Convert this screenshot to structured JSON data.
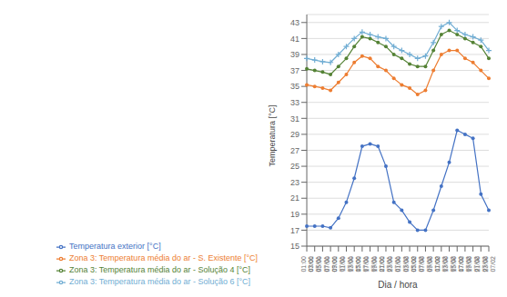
{
  "chart_data": {
    "type": "line",
    "xlabel": "Dia / hora",
    "ylabel": "Temperatura [°C]",
    "categories": [
      "01:00\n07/01",
      "03:00\n07/01",
      "05:00\n07/01",
      "07:00\n07/01",
      "09:00\n07/01",
      "11:00\n07/01",
      "13:00\n07/01",
      "15:00\n07/01",
      "17:00\n07/01",
      "19:00\n07/01",
      "21:00\n07/01",
      "23:00\n07/01",
      "01:00\n07/02",
      "03:00\n07/02",
      "05:00\n07/02",
      "07:00\n07/02",
      "09:00\n07/02",
      "11:00\n07/02",
      "13:00\n07/02",
      "15:00\n07/02",
      "17:00\n07/02",
      "19:00\n07/02",
      "21:00\n07/02",
      "23:00\n07/02"
    ],
    "series": [
      {
        "name": "Temperatura exterior [°C]",
        "color": "#4472C4",
        "marker": "o",
        "values": [
          17.5,
          17.5,
          17.5,
          17.3,
          18.5,
          20.5,
          23.5,
          27.5,
          27.8,
          27.5,
          25.0,
          20.5,
          19.5,
          18.0,
          17.0,
          17.0,
          19.5,
          22.5,
          25.5,
          29.5,
          29.0,
          28.5,
          21.5,
          19.5
        ]
      },
      {
        "name": "Zona 3: Temperatura média do ar - S. Existente [°C]",
        "color": "#ED7D31",
        "marker": "o",
        "values": [
          35.2,
          35.0,
          34.8,
          34.5,
          35.5,
          36.5,
          38.0,
          38.8,
          38.5,
          37.5,
          37.0,
          36.0,
          35.2,
          34.8,
          34.0,
          34.5,
          37.0,
          39.0,
          39.5,
          39.5,
          38.5,
          38.0,
          37.0,
          36.0
        ]
      },
      {
        "name": "Zona 3: Temperatura média do ar - Solução 4 [°C]",
        "color": "#548235",
        "marker": "o",
        "values": [
          37.2,
          37.0,
          36.8,
          36.5,
          37.5,
          38.5,
          40.0,
          41.2,
          41.0,
          40.5,
          40.0,
          39.0,
          38.5,
          37.8,
          37.5,
          37.5,
          39.5,
          41.5,
          42.0,
          41.5,
          41.0,
          40.5,
          40.0,
          38.5
        ]
      },
      {
        "name": "Zona 3: Temperatura média do ar - Solução 6 [°C]",
        "color": "#70ADD3",
        "marker": "+",
        "values": [
          38.5,
          38.3,
          38.1,
          38.0,
          39.0,
          40.0,
          41.0,
          41.8,
          41.5,
          41.2,
          41.0,
          40.0,
          39.5,
          39.0,
          38.5,
          38.8,
          40.5,
          42.5,
          43.0,
          42.0,
          41.5,
          41.2,
          40.8,
          39.5
        ]
      }
    ],
    "ylim": [
      15,
      44
    ],
    "yticks": [
      15,
      17,
      19,
      21,
      23,
      25,
      27,
      29,
      31,
      33,
      35,
      37,
      39,
      41,
      43
    ],
    "grid": true,
    "legend": "bottom"
  }
}
